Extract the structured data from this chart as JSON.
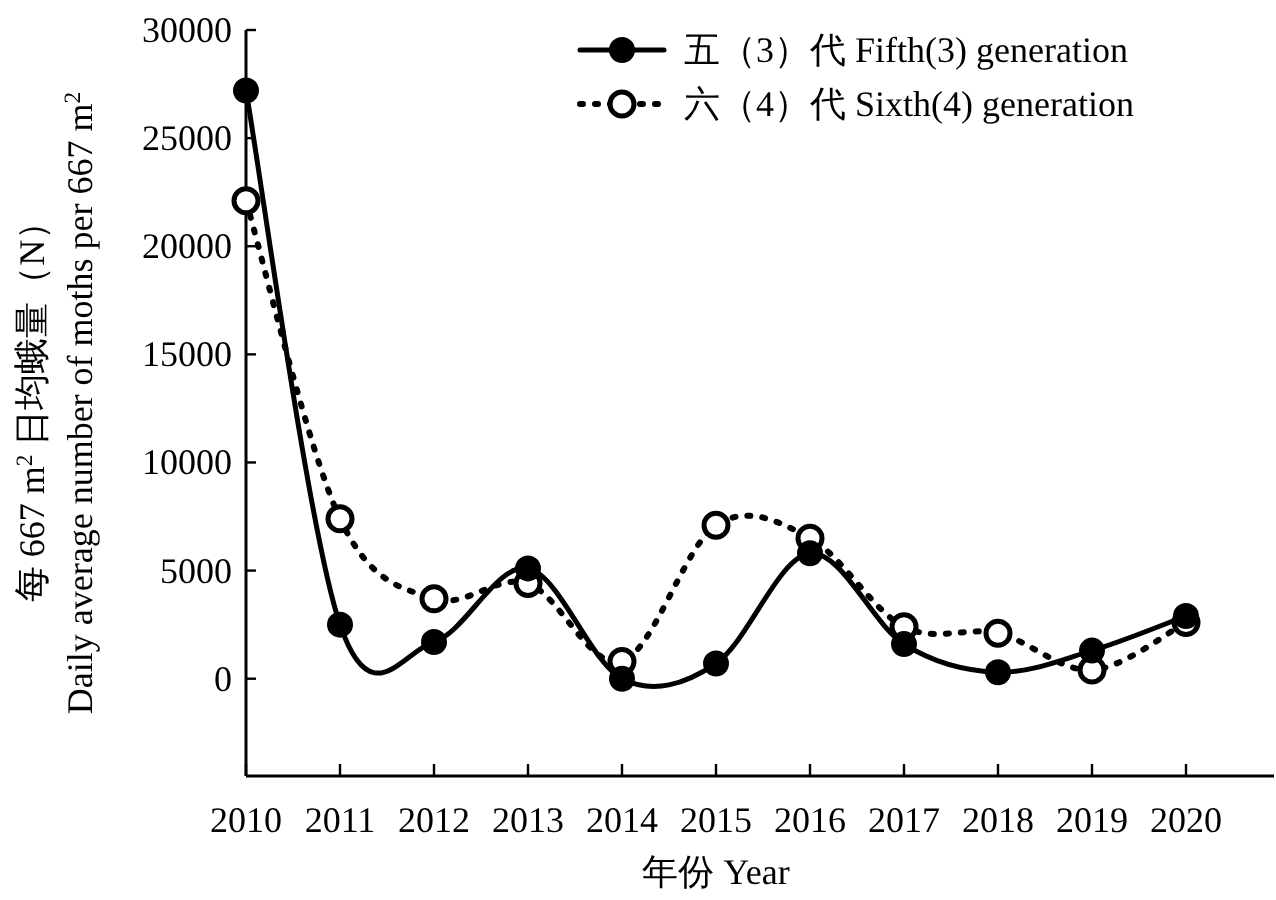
{
  "chart_data": {
    "type": "line",
    "xlabel": "年份 Year",
    "ylabel": "每 667 m$^{2}$ 日均蛾量（N）\nDaily average number of moths per 667 m$^{2}$",
    "categories": [
      "2010",
      "2011",
      "2012",
      "2013",
      "2014",
      "2015",
      "2016",
      "2017",
      "2018",
      "2019",
      "2020"
    ],
    "series": [
      {
        "name": "五（3）代 Fifth(3) generation",
        "color": "#000000",
        "line_style": "solid",
        "values": [
          27200,
          2500,
          1700,
          5100,
          0,
          700,
          5800,
          1600,
          300,
          1300,
          2900
        ]
      },
      {
        "name": "六（4）代 Sixth(4) generation",
        "color": "#000000",
        "line_style": "dotted",
        "values": [
          22100,
          7400,
          3700,
          4400,
          800,
          7100,
          6500,
          2400,
          2100,
          400,
          2600
        ]
      }
    ],
    "ylim": [
      -4500,
      30000
    ],
    "yticks": [
      0,
      5000,
      10000,
      15000,
      20000,
      25000,
      30000
    ],
    "marker": "circle",
    "legend": "top right",
    "grid": false
  }
}
